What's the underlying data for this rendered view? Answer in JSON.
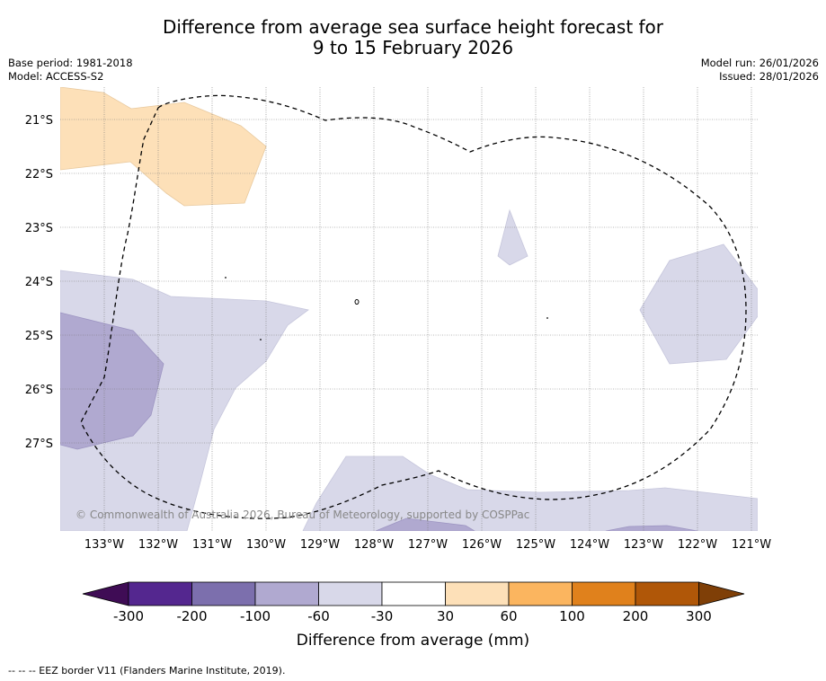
{
  "title": {
    "line1": "Difference from average sea surface height forecast for",
    "line2": "9 to 15 February 2026"
  },
  "meta": {
    "base_period": "Base period: 1981-2018",
    "model": "Model: ACCESS-S2",
    "model_run": "Model run: 26/01/2026",
    "issued": "Issued: 28/01/2026"
  },
  "map": {
    "lat_labels": [
      "21°S",
      "22°S",
      "23°S",
      "24°S",
      "25°S",
      "26°S",
      "27°S"
    ],
    "lon_labels": [
      "133°W",
      "132°W",
      "131°W",
      "130°W",
      "129°W",
      "128°W",
      "127°W",
      "126°W",
      "125°W",
      "124°W",
      "123°W",
      "122°W",
      "121°W"
    ],
    "copyright": "© Commonwealth of Australia 2026, Bureau of Meteorology, supported by COSPPac",
    "colors": {
      "neg_100_60": "#b0a9d0",
      "neg_60_30": "#d8d8e9",
      "pos_30_60": "#fde0b8",
      "land": "#000000"
    }
  },
  "colorbar": {
    "tick_labels": [
      "-300",
      "-200",
      "-100",
      "-60",
      "-30",
      "30",
      "60",
      "100",
      "200",
      "300"
    ],
    "label": "Difference from average (mm)",
    "colors": [
      "#3f0c55",
      "#54278f",
      "#7c6fad",
      "#b0a9d0",
      "#d8d8e9",
      "#ffffff",
      "#fde0b8",
      "#fbb55f",
      "#e0811c",
      "#b05708",
      "#7f3f07"
    ]
  },
  "footnote": "--  --  -- EEZ border V11 (Flanders Marine Institute, 2019)."
}
